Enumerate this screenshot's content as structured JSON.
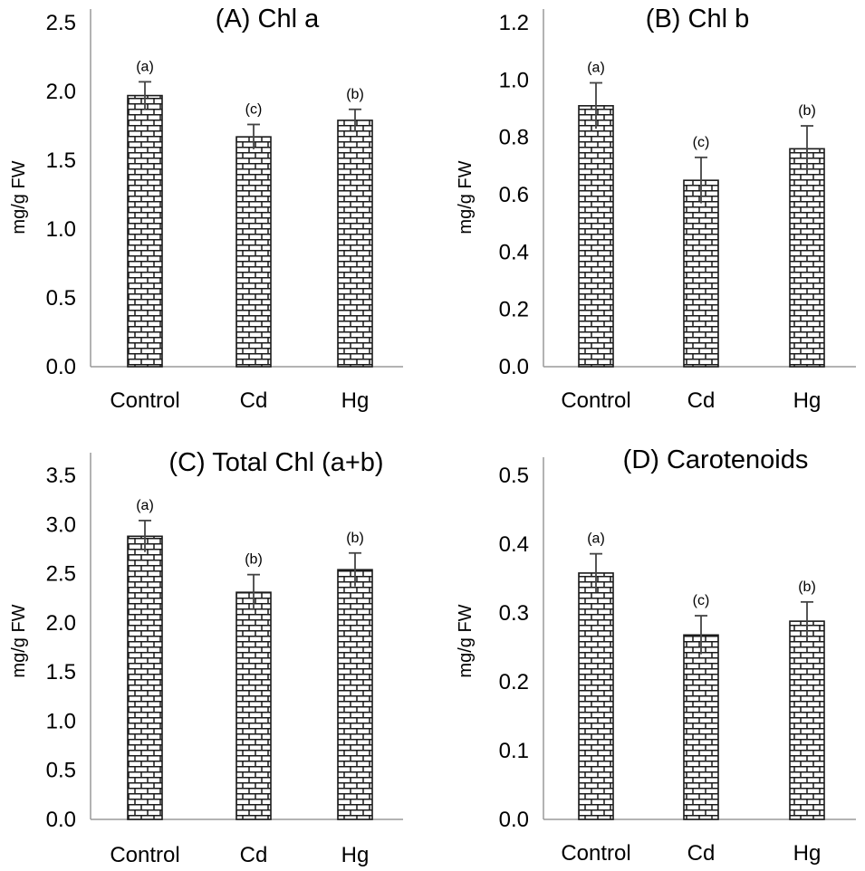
{
  "chart_data": [
    {
      "type": "bar",
      "title": "(A) Chl a",
      "ylabel": "mg/g FW",
      "xlabel": "",
      "categories": [
        "Control",
        "Cd",
        "Hg"
      ],
      "values": [
        1.97,
        1.67,
        1.79
      ],
      "errors": [
        0.1,
        0.09,
        0.08
      ],
      "significance": [
        "(a)",
        "(c)",
        "(b)"
      ],
      "ylim": [
        0,
        2.5
      ],
      "yticks": [
        "0.0",
        "0.5",
        "1.0",
        "1.5",
        "2.0",
        "2.5"
      ],
      "grid": false,
      "legend": "none"
    },
    {
      "type": "bar",
      "title": "(B) Chl b",
      "ylabel": "mg/g FW",
      "xlabel": "",
      "categories": [
        "Control",
        "Cd",
        "Hg"
      ],
      "values": [
        0.91,
        0.65,
        0.76
      ],
      "errors": [
        0.08,
        0.08,
        0.08
      ],
      "significance": [
        "(a)",
        "(c)",
        "(b)"
      ],
      "ylim": [
        0,
        1.2
      ],
      "yticks": [
        "0.0",
        "0.2",
        "0.4",
        "0.6",
        "0.8",
        "1.0",
        "1.2"
      ],
      "grid": false,
      "legend": "none"
    },
    {
      "type": "bar",
      "title": "(C) Total Chl (a+b)",
      "ylabel": "mg/g FW",
      "xlabel": "",
      "categories": [
        "Control",
        "Cd",
        "Hg"
      ],
      "values": [
        2.88,
        2.31,
        2.54
      ],
      "errors": [
        0.16,
        0.18,
        0.17
      ],
      "significance": [
        "(a)",
        "(b)",
        "(b)"
      ],
      "ylim": [
        0,
        3.5
      ],
      "yticks": [
        "0.0",
        "0.5",
        "1.0",
        "1.5",
        "2.0",
        "2.5",
        "3.0",
        "3.5"
      ],
      "grid": false,
      "legend": "none"
    },
    {
      "type": "bar",
      "title": "(D) Carotenoids",
      "ylabel": "mg/g FW",
      "xlabel": "",
      "categories": [
        "Control",
        "Cd",
        "Hg"
      ],
      "values": [
        0.358,
        0.268,
        0.288
      ],
      "errors": [
        0.028,
        0.028,
        0.028
      ],
      "significance": [
        "(a)",
        "(c)",
        "(b)"
      ],
      "ylim": [
        0,
        0.5
      ],
      "yticks": [
        "0.0",
        "0.1",
        "0.2",
        "0.3",
        "0.4",
        "0.5"
      ],
      "grid": false,
      "legend": "none"
    }
  ],
  "colors": {
    "brick_fill": "#ffffff",
    "brick_mortar": "#1a1a1a",
    "axis": "#9a9a9a",
    "error_bar": "#444444",
    "text": "#000000"
  }
}
